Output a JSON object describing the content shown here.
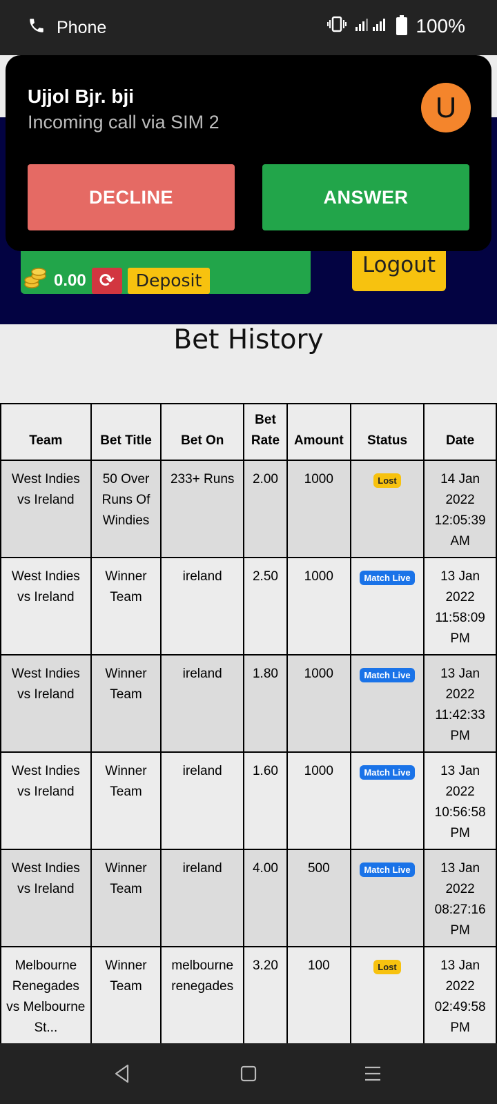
{
  "status_bar": {
    "app": "Phone",
    "battery": "100%"
  },
  "call": {
    "caller": "Ujjol Bjr. bji",
    "subtitle": "Incoming call via SIM 2",
    "avatar_letter": "U",
    "decline_label": "DECLINE",
    "answer_label": "ANSWER"
  },
  "header": {
    "balance": "0.00",
    "deposit_label": "Deposit",
    "logout_label": "Logout"
  },
  "page": {
    "title": "Bet History"
  },
  "table": {
    "headers": [
      "Team",
      "Bet Title",
      "Bet On",
      "Bet Rate",
      "Amount",
      "Status",
      "Date"
    ],
    "rows": [
      {
        "team": "West Indies vs Ireland",
        "title": "50 Over Runs Of Windies",
        "on": "233+ Runs",
        "rate": "2.00",
        "amount": "1000",
        "status": "Lost",
        "date": "14 Jan 2022 12:05:39 AM"
      },
      {
        "team": "West Indies vs Ireland",
        "title": "Winner Team",
        "on": "ireland",
        "rate": "2.50",
        "amount": "1000",
        "status": "Match Live",
        "date": "13 Jan 2022 11:58:09 PM"
      },
      {
        "team": "West Indies vs Ireland",
        "title": "Winner Team",
        "on": "ireland",
        "rate": "1.80",
        "amount": "1000",
        "status": "Match Live",
        "date": "13 Jan 2022 11:42:33 PM"
      },
      {
        "team": "West Indies vs Ireland",
        "title": "Winner Team",
        "on": "ireland",
        "rate": "1.60",
        "amount": "1000",
        "status": "Match Live",
        "date": "13 Jan 2022 10:56:58 PM"
      },
      {
        "team": "West Indies vs Ireland",
        "title": "Winner Team",
        "on": "ireland",
        "rate": "4.00",
        "amount": "500",
        "status": "Match Live",
        "date": "13 Jan 2022 08:27:16 PM"
      },
      {
        "team": "Melbourne Renegades vs Melbourne St...",
        "title": "Winner Team",
        "on": "melbourne renegades",
        "rate": "3.20",
        "amount": "100",
        "status": "Lost",
        "date": "13 Jan 2022 02:49:58 PM"
      }
    ]
  },
  "colors": {
    "header_bg": "#030342",
    "wallet_green": "#22a54a",
    "logout_yellow": "#f7c20f",
    "decline_red": "#e56a64",
    "answer_green": "#22a54a",
    "avatar_orange": "#f4852c",
    "badge_live": "#1a73e8"
  },
  "icons": [
    "phone-icon",
    "vibrate-icon",
    "signal-icon",
    "battery-icon",
    "coins-icon",
    "refresh-icon",
    "back-icon",
    "home-icon",
    "menu-icon"
  ]
}
